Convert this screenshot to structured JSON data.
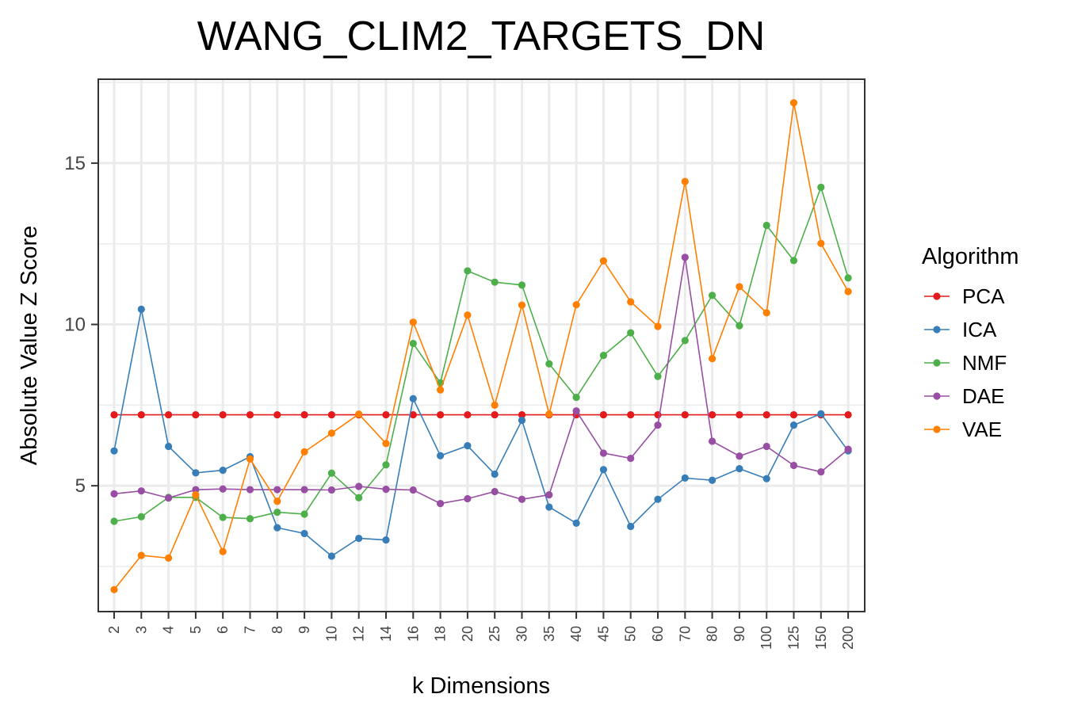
{
  "chart_data": {
    "type": "line",
    "title": "WANG_CLIM2_TARGETS_DN",
    "xlabel": "k Dimensions",
    "ylabel": "Absolute Value Z Score",
    "categories": [
      "2",
      "3",
      "4",
      "5",
      "6",
      "7",
      "8",
      "9",
      "10",
      "12",
      "14",
      "16",
      "18",
      "20",
      "25",
      "30",
      "35",
      "40",
      "45",
      "50",
      "60",
      "70",
      "80",
      "90",
      "100",
      "125",
      "150",
      "200"
    ],
    "ylim": [
      1.1,
      17.6
    ],
    "yticks": [
      5,
      10,
      15
    ],
    "ytick_labels": [
      "5",
      "10",
      "15"
    ],
    "grid": true,
    "legend": {
      "title": "Algorithm",
      "position": "right"
    },
    "series": [
      {
        "name": "PCA",
        "color": "#e41a1c",
        "values": [
          7.2,
          7.2,
          7.2,
          7.2,
          7.2,
          7.2,
          7.2,
          7.2,
          7.2,
          7.2,
          7.2,
          7.2,
          7.2,
          7.2,
          7.2,
          7.2,
          7.2,
          7.2,
          7.2,
          7.2,
          7.2,
          7.2,
          7.2,
          7.2,
          7.2,
          7.2,
          7.2,
          7.2
        ]
      },
      {
        "name": "ICA",
        "color": "#377eb8",
        "values": [
          6.08,
          10.47,
          6.22,
          5.4,
          5.48,
          5.9,
          3.7,
          3.52,
          2.82,
          3.37,
          3.32,
          7.7,
          5.93,
          6.24,
          5.36,
          7.03,
          4.34,
          3.84,
          5.5,
          3.74,
          4.58,
          5.24,
          5.17,
          5.53,
          5.22,
          6.88,
          7.23,
          6.08
        ]
      },
      {
        "name": "NMF",
        "color": "#4daf4a",
        "values": [
          3.9,
          4.04,
          4.64,
          4.64,
          4.02,
          3.98,
          4.18,
          4.12,
          5.39,
          4.63,
          5.65,
          9.41,
          8.19,
          11.66,
          11.31,
          11.22,
          8.78,
          7.74,
          9.04,
          9.74,
          8.39,
          9.5,
          10.9,
          9.96,
          13.07,
          11.98,
          14.25,
          11.44
        ]
      },
      {
        "name": "DAE",
        "color": "#984ea3",
        "values": [
          4.75,
          4.84,
          4.62,
          4.88,
          4.9,
          4.88,
          4.88,
          4.88,
          4.87,
          4.98,
          4.89,
          4.87,
          4.45,
          4.6,
          4.82,
          4.58,
          4.72,
          7.32,
          6.01,
          5.85,
          6.88,
          12.08,
          6.38,
          5.92,
          6.22,
          5.63,
          5.43,
          6.13
        ]
      },
      {
        "name": "VAE",
        "color": "#ff7f00",
        "values": [
          1.78,
          2.84,
          2.76,
          4.72,
          2.96,
          5.83,
          4.52,
          6.05,
          6.63,
          7.22,
          6.31,
          10.07,
          7.97,
          10.29,
          7.5,
          10.6,
          7.22,
          10.61,
          11.97,
          10.7,
          9.94,
          14.43,
          8.94,
          11.17,
          10.36,
          16.87,
          12.51,
          11.02
        ]
      }
    ]
  }
}
